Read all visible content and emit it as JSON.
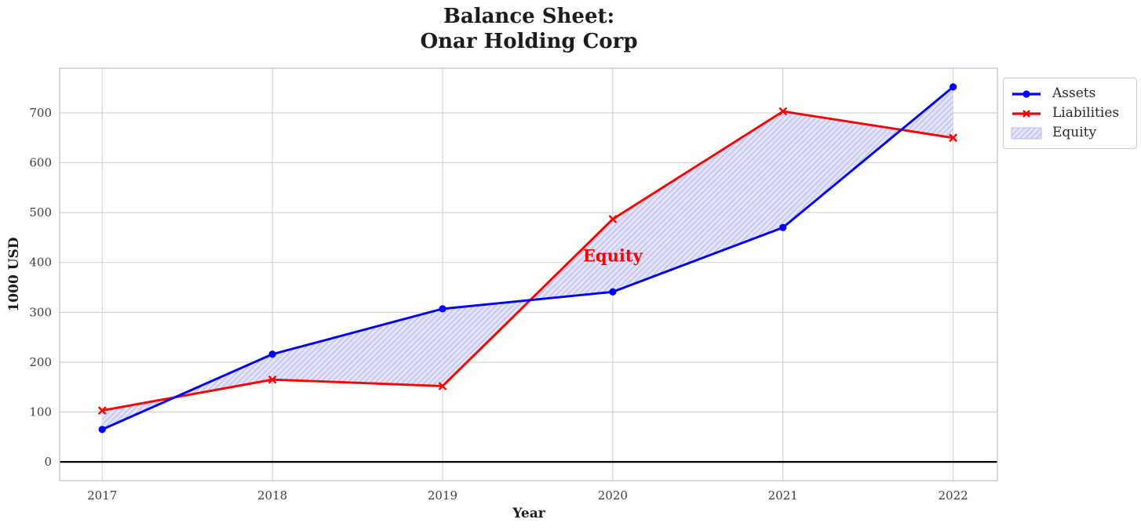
{
  "chart_data": {
    "type": "line",
    "title": "Balance Sheet:\nOnar Holding Corp",
    "xlabel": "Year",
    "ylabel": "1000 USD",
    "x": [
      2017,
      2018,
      2019,
      2020,
      2021,
      2022
    ],
    "xtick_labels": [
      "2017",
      "2018",
      "2019",
      "2020",
      "2021",
      "2022"
    ],
    "yticks": [
      0,
      100,
      200,
      300,
      400,
      500,
      600,
      700
    ],
    "xlim": [
      2016.75,
      2022.26
    ],
    "ylim": [
      -37.6,
      789.6
    ],
    "grid": true,
    "series": [
      {
        "name": "Assets",
        "color": "#0000ff",
        "marker": "circle",
        "values": [
          65,
          216,
          307,
          341,
          470,
          752
        ]
      },
      {
        "name": "Liabilities",
        "color": "#ff0000",
        "marker": "x",
        "values": [
          103,
          165,
          152,
          487,
          703,
          650
        ]
      }
    ],
    "area": {
      "name": "Equity",
      "between": [
        "Assets",
        "Liabilities"
      ],
      "fill_color": "#e3e3f8",
      "hatch_color": "#b9b9ee",
      "hatch": "//"
    },
    "zero_line_color": "#000000",
    "grid_color": "#cdcdcd",
    "spine_color": "#c4c4c4",
    "annotation": {
      "text": "Equity",
      "x": 2020,
      "y": 413,
      "color": "#ff0000"
    },
    "legend": {
      "position": "upper right, outside axes",
      "items": [
        "Assets",
        "Liabilities",
        "Equity"
      ]
    }
  }
}
